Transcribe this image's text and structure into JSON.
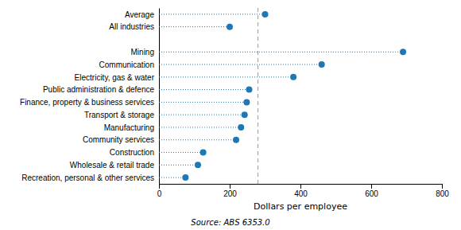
{
  "chart_data": {
    "type": "dot",
    "orientation": "horizontal",
    "categories": [
      "Average",
      "All industries",
      null,
      "Mining",
      "Communication",
      "Electricity, gas & water",
      "Public administration & defence",
      "Finance, property & business services",
      "Transport & storage",
      "Manufacturing",
      "Community services",
      "Construction",
      "Wholesale & retail trade",
      "Recreation, personal & other services"
    ],
    "values": [
      300,
      200,
      null,
      690,
      460,
      380,
      255,
      248,
      242,
      232,
      218,
      125,
      110,
      75
    ],
    "reference_line": 280,
    "xlim": [
      0,
      800
    ],
    "xticks": [
      0,
      200,
      400,
      600,
      800
    ],
    "xlabel": "Dollars per employee",
    "source": "Source: ABS 6353.0",
    "grid": false
  }
}
